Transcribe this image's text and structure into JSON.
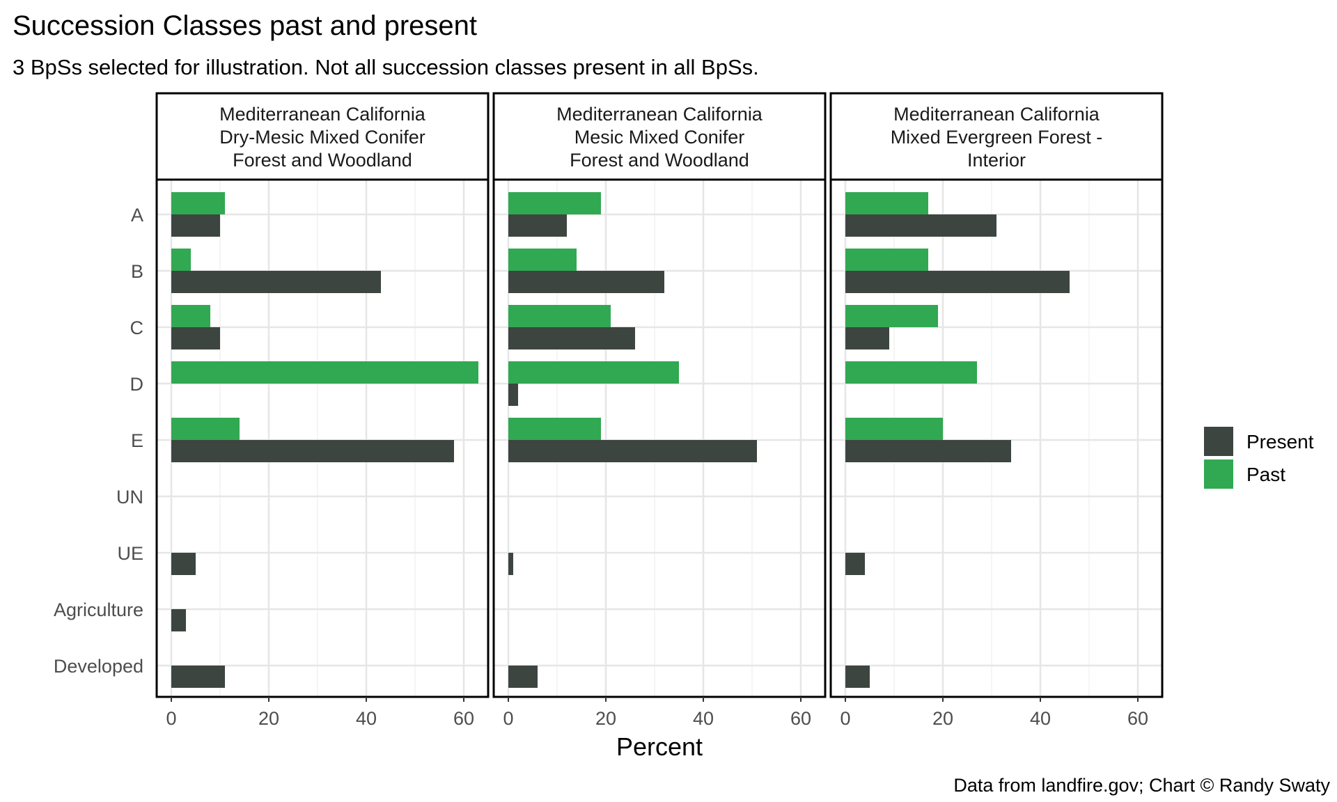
{
  "chart_data": {
    "type": "bar",
    "orientation": "horizontal",
    "title": "Succession Classes past and present",
    "subtitle": "3 BpSs selected for illustration. Not all succession classes present in all BpSs.",
    "xlabel": "Percent",
    "caption": "Data from landfire.gov; Chart © Randy Swaty",
    "categories": [
      "A",
      "B",
      "C",
      "D",
      "E",
      "UN",
      "UE",
      "Agriculture",
      "Developed"
    ],
    "xlim": [
      -3,
      65
    ],
    "xticks": [
      0,
      20,
      40,
      60
    ],
    "grid": true,
    "legend": {
      "position": "right",
      "entries": [
        {
          "name": "Present",
          "color": "#3d4540"
        },
        {
          "name": "Past",
          "color": "#31a852"
        }
      ]
    },
    "panels": [
      {
        "title_lines": [
          "Mediterranean California",
          "Dry-Mesic Mixed Conifer",
          "Forest and Woodland"
        ],
        "series": [
          {
            "name": "Present",
            "values": [
              10,
              43,
              10,
              0,
              58,
              0,
              5,
              3,
              11
            ]
          },
          {
            "name": "Past",
            "values": [
              11,
              4,
              8,
              63,
              14,
              0,
              0,
              0,
              0
            ]
          }
        ]
      },
      {
        "title_lines": [
          "Mediterranean California",
          "Mesic Mixed Conifer",
          "Forest and Woodland"
        ],
        "series": [
          {
            "name": "Present",
            "values": [
              12,
              32,
              26,
              2,
              51,
              0,
              1,
              0,
              6
            ]
          },
          {
            "name": "Past",
            "values": [
              19,
              14,
              21,
              35,
              19,
              0,
              0,
              0,
              0
            ]
          }
        ]
      },
      {
        "title_lines": [
          "Mediterranean California",
          "Mixed Evergreen Forest -",
          "Interior"
        ],
        "series": [
          {
            "name": "Present",
            "values": [
              31,
              46,
              9,
              0,
              34,
              0,
              4,
              0,
              5
            ]
          },
          {
            "name": "Past",
            "values": [
              17,
              17,
              19,
              27,
              20,
              0,
              0,
              0,
              0
            ]
          }
        ]
      }
    ]
  }
}
